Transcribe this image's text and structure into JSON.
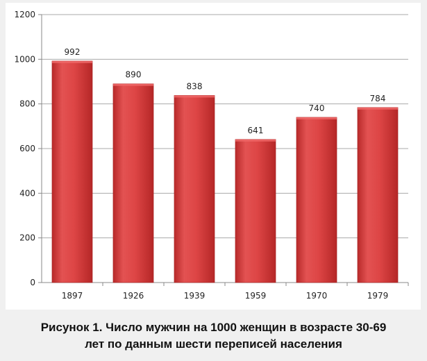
{
  "caption": {
    "line1": "Рисунок 1. Число мужчин на 1000 женщин в возрасте 30-69",
    "line2": "лет  по данным шести переписей населения"
  },
  "chart_data": {
    "type": "bar",
    "categories": [
      "1897",
      "1926",
      "1939",
      "1959",
      "1970",
      "1979"
    ],
    "values": [
      992,
      890,
      838,
      641,
      740,
      784
    ],
    "title": "",
    "xlabel": "",
    "ylabel": "",
    "ylim": [
      0,
      1200
    ],
    "yticks": [
      0,
      200,
      400,
      600,
      800,
      1000,
      1200
    ],
    "grid": true,
    "legend": "none",
    "bar_color": "#d94040",
    "data_labels": true
  }
}
